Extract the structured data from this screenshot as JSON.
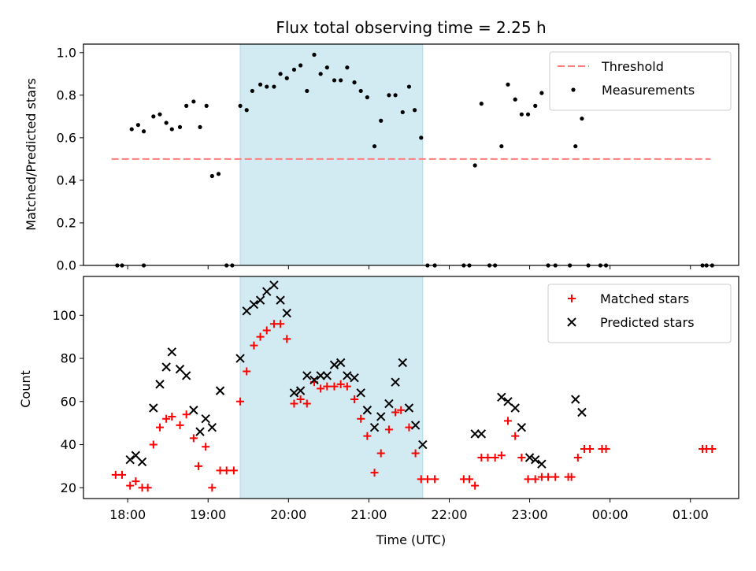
{
  "chart_data": [
    {
      "type": "scatter",
      "title": "Flux total observing time = 2.25 h",
      "xlabel": "",
      "ylabel": "Matched/Predicted stars",
      "xlim": [
        17.45,
        25.6
      ],
      "ylim": [
        0,
        1.04
      ],
      "grid": false,
      "legend_position": "top-right",
      "x_tick_values": [
        18,
        19,
        20,
        21,
        22,
        23,
        24,
        25
      ],
      "y_ticks": [
        "0.0",
        "0.2",
        "0.4",
        "0.6",
        "0.8",
        "1.0"
      ],
      "shaded_region": {
        "x": [
          19.4,
          21.67
        ],
        "color": "#add8e6"
      },
      "threshold": {
        "name": "Threshold",
        "y": 0.5,
        "x": [
          17.8,
          25.25
        ],
        "color": "#ff7f7f"
      },
      "series": [
        {
          "name": "Measurements",
          "color": "#000000",
          "points": [
            [
              17.87,
              0.0
            ],
            [
              17.93,
              0.0
            ],
            [
              18.05,
              0.64
            ],
            [
              18.13,
              0.66
            ],
            [
              18.2,
              0.63
            ],
            [
              18.2,
              0.0
            ],
            [
              18.32,
              0.7
            ],
            [
              18.4,
              0.71
            ],
            [
              18.48,
              0.67
            ],
            [
              18.55,
              0.64
            ],
            [
              18.65,
              0.65
            ],
            [
              18.73,
              0.75
            ],
            [
              18.82,
              0.77
            ],
            [
              18.9,
              0.65
            ],
            [
              18.98,
              0.75
            ],
            [
              19.05,
              0.42
            ],
            [
              19.13,
              0.43
            ],
            [
              19.23,
              0.0
            ],
            [
              19.3,
              0.0
            ],
            [
              19.4,
              0.75
            ],
            [
              19.48,
              0.73
            ],
            [
              19.55,
              0.82
            ],
            [
              19.65,
              0.85
            ],
            [
              19.73,
              0.84
            ],
            [
              19.82,
              0.84
            ],
            [
              19.9,
              0.9
            ],
            [
              19.98,
              0.88
            ],
            [
              20.07,
              0.92
            ],
            [
              20.15,
              0.94
            ],
            [
              20.23,
              0.82
            ],
            [
              20.32,
              0.99
            ],
            [
              20.4,
              0.9
            ],
            [
              20.48,
              0.93
            ],
            [
              20.57,
              0.87
            ],
            [
              20.65,
              0.87
            ],
            [
              20.73,
              0.93
            ],
            [
              20.82,
              0.86
            ],
            [
              20.9,
              0.82
            ],
            [
              20.98,
              0.79
            ],
            [
              21.07,
              0.56
            ],
            [
              21.15,
              0.68
            ],
            [
              21.25,
              0.8
            ],
            [
              21.33,
              0.8
            ],
            [
              21.42,
              0.72
            ],
            [
              21.5,
              0.84
            ],
            [
              21.57,
              0.73
            ],
            [
              21.65,
              0.6
            ],
            [
              21.73,
              0.0
            ],
            [
              21.82,
              0.0
            ],
            [
              22.18,
              0.0
            ],
            [
              22.25,
              0.0
            ],
            [
              22.32,
              0.47
            ],
            [
              22.4,
              0.76
            ],
            [
              22.5,
              0.0
            ],
            [
              22.57,
              0.0
            ],
            [
              22.65,
              0.56
            ],
            [
              22.73,
              0.85
            ],
            [
              22.82,
              0.78
            ],
            [
              22.9,
              0.71
            ],
            [
              22.98,
              0.71
            ],
            [
              23.07,
              0.75
            ],
            [
              23.15,
              0.81
            ],
            [
              23.23,
              0.0
            ],
            [
              23.32,
              0.0
            ],
            [
              23.5,
              0.0
            ],
            [
              23.57,
              0.56
            ],
            [
              23.65,
              0.69
            ],
            [
              23.73,
              0.0
            ],
            [
              23.88,
              0.0
            ],
            [
              23.95,
              0.0
            ],
            [
              25.15,
              0.0
            ],
            [
              25.2,
              0.0
            ],
            [
              25.27,
              0.0
            ]
          ]
        }
      ]
    },
    {
      "type": "scatter",
      "title": "",
      "xlabel": "Time (UTC)",
      "ylabel": "Count",
      "xlim": [
        17.45,
        25.6
      ],
      "ylim": [
        15,
        118
      ],
      "grid": false,
      "legend_position": "top-right",
      "x_tick_values": [
        18,
        19,
        20,
        21,
        22,
        23,
        24,
        25
      ],
      "x_ticks": [
        "18:00",
        "19:00",
        "20:00",
        "21:00",
        "22:00",
        "23:00",
        "00:00",
        "01:00"
      ],
      "y_ticks": [
        "20",
        "40",
        "60",
        "80",
        "100"
      ],
      "y_tick_values": [
        20,
        40,
        60,
        80,
        100
      ],
      "shaded_region": {
        "x": [
          19.4,
          21.67
        ],
        "color": "#add8e6"
      },
      "series": [
        {
          "name": "Matched stars",
          "marker": "+",
          "color": "#ff0000",
          "points": [
            [
              17.85,
              26
            ],
            [
              17.93,
              26
            ],
            [
              18.03,
              21
            ],
            [
              18.1,
              23
            ],
            [
              18.18,
              20
            ],
            [
              18.25,
              20
            ],
            [
              18.32,
              40
            ],
            [
              18.4,
              48
            ],
            [
              18.48,
              52
            ],
            [
              18.55,
              53
            ],
            [
              18.65,
              49
            ],
            [
              18.73,
              54
            ],
            [
              18.82,
              43
            ],
            [
              18.88,
              30
            ],
            [
              18.97,
              39
            ],
            [
              19.05,
              20
            ],
            [
              19.15,
              28
            ],
            [
              19.23,
              28
            ],
            [
              19.32,
              28
            ],
            [
              19.4,
              60
            ],
            [
              19.48,
              74
            ],
            [
              19.57,
              86
            ],
            [
              19.65,
              90
            ],
            [
              19.73,
              93
            ],
            [
              19.82,
              96
            ],
            [
              19.9,
              96
            ],
            [
              19.98,
              89
            ],
            [
              20.07,
              59
            ],
            [
              20.15,
              61
            ],
            [
              20.23,
              59
            ],
            [
              20.32,
              69
            ],
            [
              20.4,
              66
            ],
            [
              20.48,
              67
            ],
            [
              20.57,
              67
            ],
            [
              20.65,
              68
            ],
            [
              20.73,
              67
            ],
            [
              20.82,
              61
            ],
            [
              20.9,
              52
            ],
            [
              20.98,
              44
            ],
            [
              21.07,
              27
            ],
            [
              21.15,
              36
            ],
            [
              21.25,
              47
            ],
            [
              21.33,
              55
            ],
            [
              21.4,
              56
            ],
            [
              21.5,
              48
            ],
            [
              21.58,
              36
            ],
            [
              21.65,
              24
            ],
            [
              21.73,
              24
            ],
            [
              21.82,
              24
            ],
            [
              22.18,
              24
            ],
            [
              22.25,
              24
            ],
            [
              22.32,
              21
            ],
            [
              22.4,
              34
            ],
            [
              22.48,
              34
            ],
            [
              22.57,
              34
            ],
            [
              22.65,
              35
            ],
            [
              22.73,
              51
            ],
            [
              22.82,
              44
            ],
            [
              22.9,
              34
            ],
            [
              22.98,
              24
            ],
            [
              23.07,
              24
            ],
            [
              23.15,
              25
            ],
            [
              23.23,
              25
            ],
            [
              23.32,
              25
            ],
            [
              23.48,
              25
            ],
            [
              23.52,
              25
            ],
            [
              23.6,
              34
            ],
            [
              23.68,
              38
            ],
            [
              23.75,
              38
            ],
            [
              23.9,
              38
            ],
            [
              23.95,
              38
            ],
            [
              25.15,
              38
            ],
            [
              25.2,
              38
            ],
            [
              25.27,
              38
            ]
          ]
        },
        {
          "name": "Predicted stars",
          "marker": "x",
          "color": "#000000",
          "points": [
            [
              18.03,
              33
            ],
            [
              18.1,
              35
            ],
            [
              18.18,
              32
            ],
            [
              18.32,
              57
            ],
            [
              18.4,
              68
            ],
            [
              18.48,
              76
            ],
            [
              18.55,
              83
            ],
            [
              18.65,
              75
            ],
            [
              18.73,
              72
            ],
            [
              18.82,
              56
            ],
            [
              18.9,
              46
            ],
            [
              18.97,
              52
            ],
            [
              19.05,
              48
            ],
            [
              19.15,
              65
            ],
            [
              19.4,
              80
            ],
            [
              19.48,
              102
            ],
            [
              19.57,
              105
            ],
            [
              19.65,
              107
            ],
            [
              19.73,
              111
            ],
            [
              19.82,
              114
            ],
            [
              19.9,
              107
            ],
            [
              19.98,
              101
            ],
            [
              20.07,
              64
            ],
            [
              20.15,
              65
            ],
            [
              20.23,
              72
            ],
            [
              20.32,
              70
            ],
            [
              20.4,
              72
            ],
            [
              20.48,
              72
            ],
            [
              20.57,
              77
            ],
            [
              20.65,
              78
            ],
            [
              20.73,
              72
            ],
            [
              20.82,
              71
            ],
            [
              20.9,
              64
            ],
            [
              20.98,
              56
            ],
            [
              21.07,
              48
            ],
            [
              21.15,
              53
            ],
            [
              21.25,
              59
            ],
            [
              21.33,
              69
            ],
            [
              21.42,
              78
            ],
            [
              21.5,
              57
            ],
            [
              21.58,
              49
            ],
            [
              21.67,
              40
            ],
            [
              22.32,
              45
            ],
            [
              22.4,
              45
            ],
            [
              22.65,
              62
            ],
            [
              22.73,
              60
            ],
            [
              22.82,
              57
            ],
            [
              22.9,
              48
            ],
            [
              23.0,
              34
            ],
            [
              23.07,
              33
            ],
            [
              23.15,
              31
            ],
            [
              23.57,
              61
            ],
            [
              23.65,
              55
            ]
          ]
        }
      ]
    }
  ]
}
